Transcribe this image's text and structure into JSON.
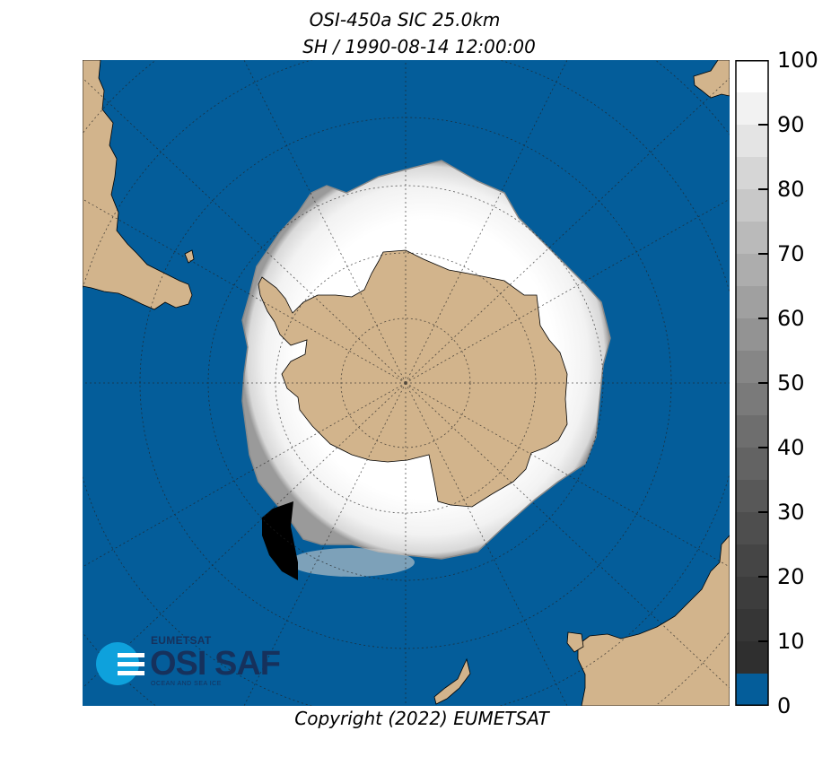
{
  "title": {
    "line1": "OSI-450a SIC 25.0km",
    "line2": "SH / 1990-08-14 12:00:00"
  },
  "footer": "Copyright (2022)  EUMETSAT",
  "colorbar": {
    "labels": [
      "100",
      "90",
      "80",
      "70",
      "60",
      "50",
      "40",
      "30",
      "20",
      "10",
      "0"
    ],
    "min": 0,
    "max": 100,
    "ocean_color": "#045d9a",
    "land_color": "#d2b48c"
  },
  "logo": {
    "org": "EUMETSAT",
    "name": "OSI SAF",
    "subtitle": "OCEAN AND SEA ICE"
  },
  "map": {
    "projection": "south-polar-stereographic",
    "hemisphere": "SH",
    "date": "1990-08-14"
  }
}
